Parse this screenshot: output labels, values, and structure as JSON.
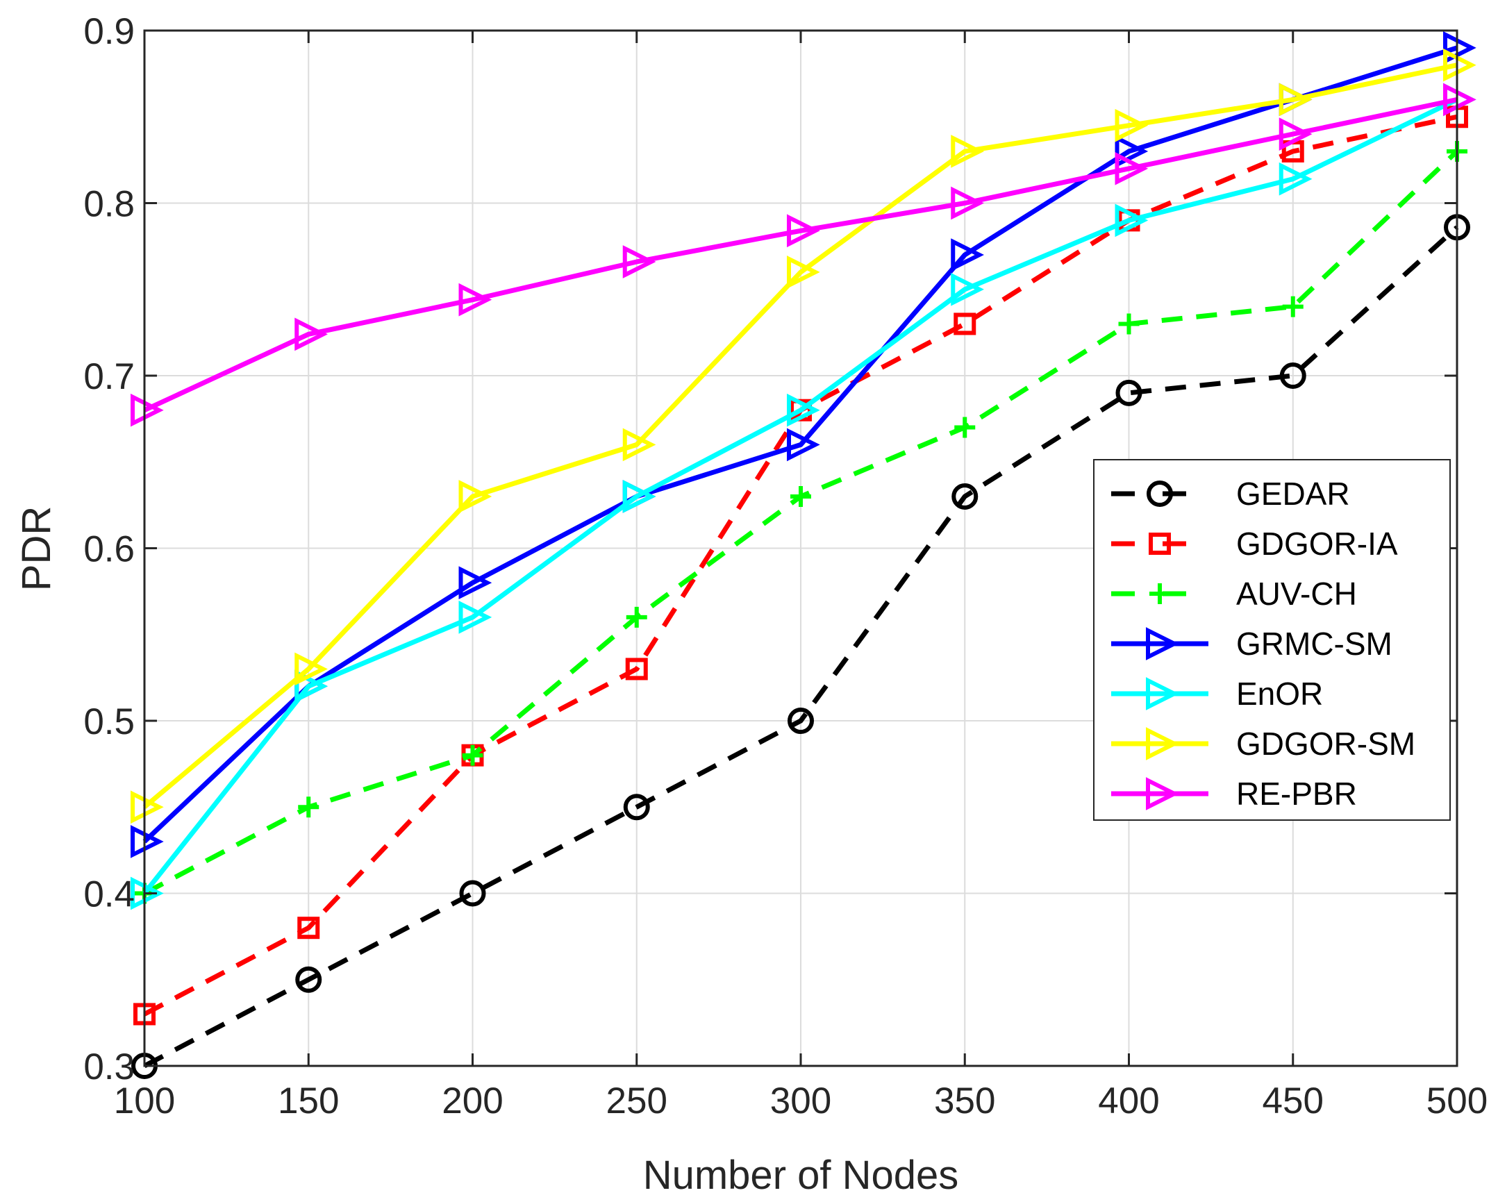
{
  "chart_data": {
    "type": "line",
    "title": "",
    "xlabel": "Number of Nodes",
    "ylabel": "PDR",
    "x": [
      100,
      150,
      200,
      250,
      300,
      350,
      400,
      450,
      500
    ],
    "xlim": [
      100,
      500
    ],
    "ylim": [
      0.3,
      0.9
    ],
    "x_ticks": [
      100,
      150,
      200,
      250,
      300,
      350,
      400,
      450,
      500
    ],
    "x_tick_labels": [
      "100",
      "150",
      "200",
      "250",
      "300",
      "350",
      "400",
      "450",
      "500"
    ],
    "y_ticks": [
      0.3,
      0.4,
      0.5,
      0.6,
      0.7,
      0.8,
      0.9
    ],
    "y_tick_labels": [
      "0.3",
      "0.4",
      "0.5",
      "0.6",
      "0.7",
      "0.8",
      "0.9"
    ],
    "grid": true,
    "legend_position": "right",
    "series": [
      {
        "name": "GEDAR",
        "color": "#000000",
        "dash": "dashed",
        "marker": "circle",
        "values": [
          0.3,
          0.35,
          0.4,
          0.45,
          0.5,
          0.63,
          0.69,
          0.7,
          0.786
        ]
      },
      {
        "name": "GDGOR-IA",
        "color": "#ff0000",
        "dash": "dashed",
        "marker": "square",
        "values": [
          0.33,
          0.38,
          0.48,
          0.53,
          0.68,
          0.73,
          0.79,
          0.83,
          0.85
        ]
      },
      {
        "name": "AUV-CH",
        "color": "#00ff00",
        "dash": "dashed",
        "marker": "plus",
        "values": [
          0.4,
          0.45,
          0.48,
          0.56,
          0.63,
          0.67,
          0.73,
          0.74,
          0.83
        ]
      },
      {
        "name": "GRMC-SM",
        "color": "#0000ff",
        "dash": "solid",
        "marker": "triangle-right",
        "values": [
          0.43,
          0.52,
          0.58,
          0.63,
          0.66,
          0.77,
          0.83,
          0.86,
          0.89
        ]
      },
      {
        "name": "EnOR",
        "color": "#00ffff",
        "dash": "solid",
        "marker": "triangle-right",
        "values": [
          0.4,
          0.52,
          0.56,
          0.63,
          0.68,
          0.75,
          0.79,
          0.814,
          0.86
        ]
      },
      {
        "name": "GDGOR-SM",
        "color": "#ffff00",
        "dash": "solid",
        "marker": "triangle-right",
        "values": [
          0.45,
          0.53,
          0.63,
          0.66,
          0.76,
          0.83,
          0.845,
          0.86,
          0.88
        ]
      },
      {
        "name": "RE-PBR",
        "color": "#ff00ff",
        "dash": "solid",
        "marker": "triangle-right",
        "values": [
          0.68,
          0.724,
          0.744,
          0.766,
          0.784,
          0.8,
          0.82,
          0.84,
          0.86
        ]
      }
    ]
  }
}
